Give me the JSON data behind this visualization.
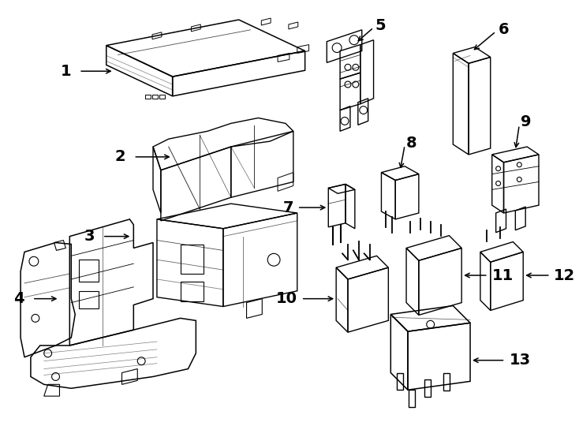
{
  "background_color": "#ffffff",
  "line_color": "#000000",
  "lw": 1.0,
  "fig_w": 7.34,
  "fig_h": 5.4,
  "dpi": 100
}
